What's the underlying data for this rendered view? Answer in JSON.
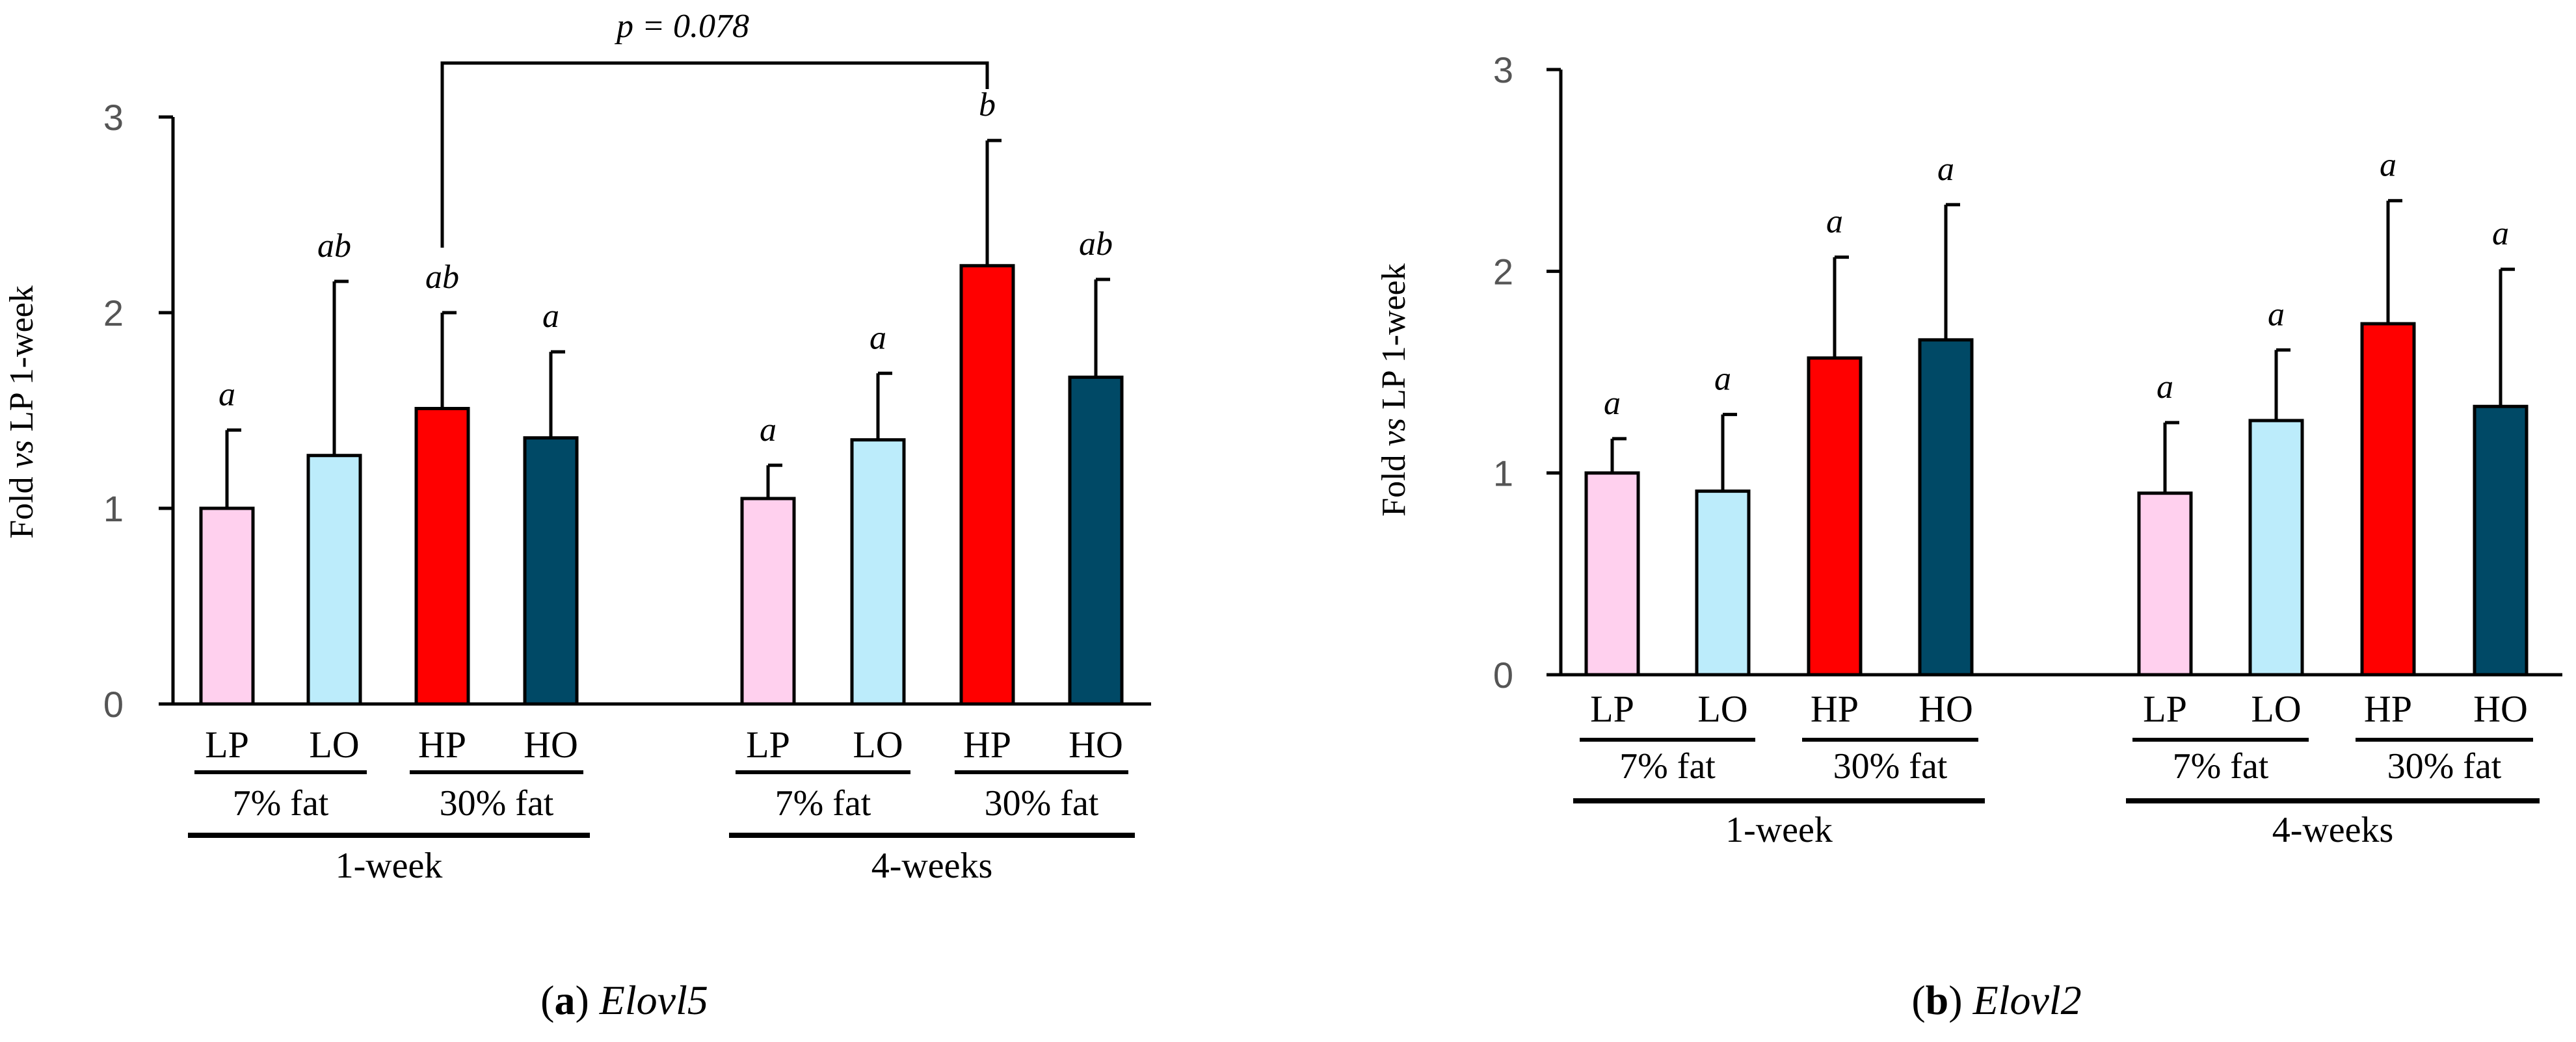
{
  "colors": {
    "LP": "#ffd0ee",
    "LO": "#bcecfb",
    "HP": "#ff0000",
    "HO": "#004966",
    "axis": "#000000"
  },
  "chart_data": [
    {
      "type": "bar",
      "panel_letter": "a",
      "gene": "Elovl5",
      "ylabel_parts": [
        "Fold ",
        "vs",
        " LP 1-week"
      ],
      "ylim": [
        0,
        3
      ],
      "yticks": [
        "0",
        "1",
        "2",
        "3"
      ],
      "group_labels": [
        "1-week",
        "4-weeks"
      ],
      "fat_labels": [
        "7% fat",
        "30% fat"
      ],
      "categories": [
        "LP",
        "LO",
        "HP",
        "HO"
      ],
      "series": [
        {
          "group": "1-week",
          "values": [
            1.0,
            1.27,
            1.51,
            1.36
          ],
          "errors": [
            0.4,
            0.89,
            0.49,
            0.44
          ],
          "letters": [
            "a",
            "ab",
            "ab",
            "a"
          ]
        },
        {
          "group": "4-weeks",
          "values": [
            1.05,
            1.35,
            2.24,
            1.67
          ],
          "errors": [
            0.17,
            0.34,
            0.64,
            0.5
          ],
          "letters": [
            "a",
            "a",
            "b",
            "ab"
          ]
        }
      ],
      "annotation": "p = 0.078"
    },
    {
      "type": "bar",
      "panel_letter": "b",
      "gene": "Elovl2",
      "ylabel_parts": [
        "Fold ",
        "vs",
        " LP 1-week"
      ],
      "ylim": [
        0,
        3
      ],
      "yticks": [
        "0",
        "1",
        "2",
        "3"
      ],
      "group_labels": [
        "1-week",
        "4-weeks"
      ],
      "fat_labels": [
        "7% fat",
        "30% fat"
      ],
      "categories": [
        "LP",
        "LO",
        "HP",
        "HO"
      ],
      "series": [
        {
          "group": "1-week",
          "values": [
            1.0,
            0.91,
            1.57,
            1.66
          ],
          "errors": [
            0.17,
            0.38,
            0.5,
            0.67
          ],
          "letters": [
            "a",
            "a",
            "a",
            "a"
          ]
        },
        {
          "group": "4-weeks",
          "values": [
            0.9,
            1.26,
            1.74,
            1.33
          ],
          "errors": [
            0.35,
            0.35,
            0.61,
            0.68
          ],
          "letters": [
            "a",
            "a",
            "a",
            "a"
          ]
        }
      ]
    }
  ]
}
